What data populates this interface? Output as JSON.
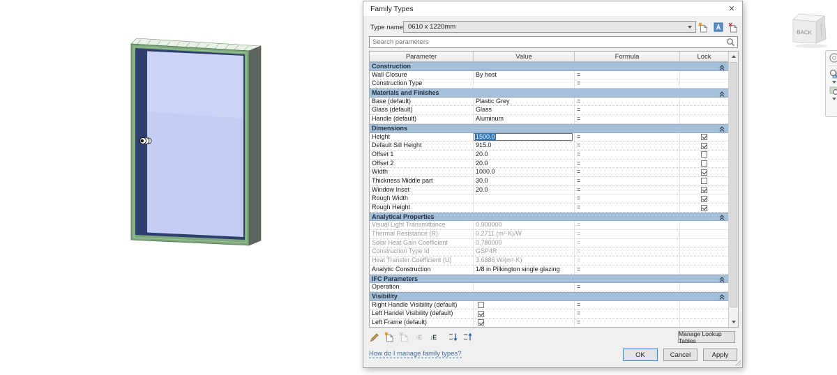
{
  "colors": {
    "selection_blue": "#2f73b8",
    "section_header_blue": "#a7c0d9",
    "link_blue": "#3a6d9e",
    "ok_focus_blue": "#3d8ad6",
    "frame_green": "#7ca87c",
    "glass_lavender": "#c6cdf4",
    "sash_navy": "#2e3f6e"
  },
  "viewcube": {
    "front_label": "BACK"
  },
  "dialog": {
    "title": "Family Types",
    "close_glyph": "✕",
    "type_name_label": "Type name:",
    "type_name_value": "0610 x 1220mm",
    "type_actions": [
      {
        "name": "new-type-icon"
      },
      {
        "name": "rename-type-icon"
      },
      {
        "name": "delete-type-icon"
      }
    ],
    "search": {
      "placeholder": "Search parameters",
      "icon": "search-icon"
    },
    "table": {
      "columns": [
        "Parameter",
        "Value",
        "Formula",
        "Lock"
      ],
      "rows": [
        {
          "kind": "section",
          "label": "Construction"
        },
        {
          "kind": "param",
          "label": "Wall Closure",
          "value": "By host",
          "formula": "="
        },
        {
          "kind": "param",
          "label": "Construction Type",
          "value": "",
          "formula": "="
        },
        {
          "kind": "section",
          "label": "Materials and Finishes"
        },
        {
          "kind": "param",
          "label": "Base (default)",
          "value": "Plastic Grey",
          "formula": "="
        },
        {
          "kind": "param",
          "label": "Glass (default)",
          "value": "Glass",
          "formula": "="
        },
        {
          "kind": "param",
          "label": "Handle (default)",
          "value": "Aluminum",
          "formula": "="
        },
        {
          "kind": "section",
          "label": "Dimensions"
        },
        {
          "kind": "param",
          "label": "Height",
          "value": "1500.0",
          "formula": "=",
          "lock": "checked",
          "value_state": "editing-selected"
        },
        {
          "kind": "param",
          "label": "Default Sill Height",
          "value": "915.0",
          "formula": "=",
          "lock": "checked"
        },
        {
          "kind": "param",
          "label": "Offset 1",
          "value": "20.0",
          "formula": "=",
          "lock": "unchecked"
        },
        {
          "kind": "param",
          "label": "Offset 2",
          "value": "20.0",
          "formula": "=",
          "lock": "unchecked"
        },
        {
          "kind": "param",
          "label": "Width",
          "value": "1000.0",
          "formula": "=",
          "lock": "checked"
        },
        {
          "kind": "param",
          "label": "Thickness Middle part",
          "value": "30.0",
          "formula": "=",
          "lock": "unchecked"
        },
        {
          "kind": "param",
          "label": "Window Inset",
          "value": "20.0",
          "formula": "=",
          "lock": "checked"
        },
        {
          "kind": "param",
          "label": "Rough Width",
          "value": "",
          "formula": "=",
          "lock": "checked"
        },
        {
          "kind": "param",
          "label": "Rough Height",
          "value": "",
          "formula": "=",
          "lock": "checked"
        },
        {
          "kind": "section",
          "label": "Analytical Properties"
        },
        {
          "kind": "param",
          "label": "Visual Light Transmittance",
          "value": "0.900000",
          "formula": "=",
          "disabled": true
        },
        {
          "kind": "param",
          "label": "Thermal Resistance (R)",
          "value": "0.2711 (m²·K)/W",
          "formula": "=",
          "disabled": true
        },
        {
          "kind": "param",
          "label": "Solar Heat Gain Coefficient",
          "value": "0.780000",
          "formula": "=",
          "disabled": true
        },
        {
          "kind": "param",
          "label": "Construction Type Id",
          "value": "GSP4R",
          "formula": "=",
          "disabled": true
        },
        {
          "kind": "param",
          "label": "Heat Transfer Coefficient (U)",
          "value": "3.6886 W/(m²·K)",
          "formula": "=",
          "disabled": true
        },
        {
          "kind": "param",
          "label": "Analytic Construction",
          "value": "1/8 in Pilkington single glazing",
          "formula": "="
        },
        {
          "kind": "section",
          "label": "IFC Parameters"
        },
        {
          "kind": "param",
          "label": "Operation",
          "value": "",
          "formula": "="
        },
        {
          "kind": "section",
          "label": "Visibility"
        },
        {
          "kind": "param",
          "label": "Right Handle Visibility (default)",
          "value_checkbox": "unchecked",
          "formula": "="
        },
        {
          "kind": "param",
          "label": "Left Handel Visibility (default)",
          "value_checkbox": "checked",
          "formula": "="
        },
        {
          "kind": "param",
          "label": "Left Frame (default)",
          "value_checkbox": "checked",
          "formula": "="
        }
      ]
    },
    "param_actions": [
      {
        "name": "edit-parameter-icon",
        "state": "enabled"
      },
      {
        "name": "new-parameter-icon",
        "state": "enabled"
      },
      {
        "name": "delete-parameter-icon",
        "state": "disabled"
      },
      {
        "name": "move-up-icon",
        "state": "disabled"
      },
      {
        "name": "move-down-icon",
        "state": "enabled"
      },
      {
        "name": "sort-ascending-icon",
        "state": "enabled"
      },
      {
        "name": "sort-descending-icon",
        "state": "enabled"
      }
    ],
    "footer": {
      "manage_lookup_tables": "Manage Lookup Tables",
      "help_link": "How do I manage family types?",
      "ok": "OK",
      "cancel": "Cancel",
      "apply": "Apply"
    }
  }
}
